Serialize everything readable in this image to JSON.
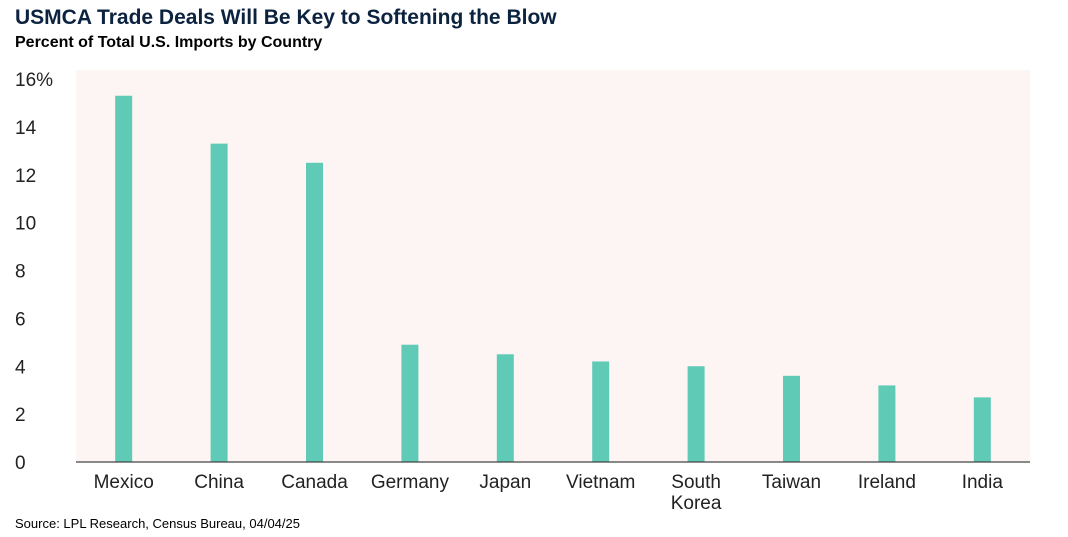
{
  "title": "USMCA Trade Deals Will Be Key to Softening the Blow",
  "subtitle": "Percent of Total U.S. Imports by Country",
  "source": "Source: LPL Research, Census Bureau, 04/04/25",
  "colors": {
    "bar": "#5fcab5",
    "plot_bg": "#fdf5f3",
    "axis": "#444444"
  },
  "chart_data": {
    "type": "bar",
    "title": "USMCA Trade Deals Will Be Key to Softening the Blow",
    "subtitle": "Percent of Total U.S. Imports by Country",
    "categories": [
      "Mexico",
      "China",
      "Canada",
      "Germany",
      "Japan",
      "Vietnam",
      "South Korea",
      "Taiwan",
      "Ireland",
      "India"
    ],
    "category_lines": [
      [
        "Mexico"
      ],
      [
        "China"
      ],
      [
        "Canada"
      ],
      [
        "Germany"
      ],
      [
        "Japan"
      ],
      [
        "Vietnam"
      ],
      [
        "South",
        "Korea"
      ],
      [
        "Taiwan"
      ],
      [
        "Ireland"
      ],
      [
        "India"
      ]
    ],
    "values": [
      15.3,
      13.3,
      12.5,
      4.9,
      4.5,
      4.2,
      4.0,
      3.6,
      3.2,
      2.7
    ],
    "yticks": [
      "0",
      "2",
      "4",
      "6",
      "8",
      "10",
      "12",
      "14",
      "16%"
    ],
    "ylim": [
      0,
      16
    ],
    "grid": false
  }
}
